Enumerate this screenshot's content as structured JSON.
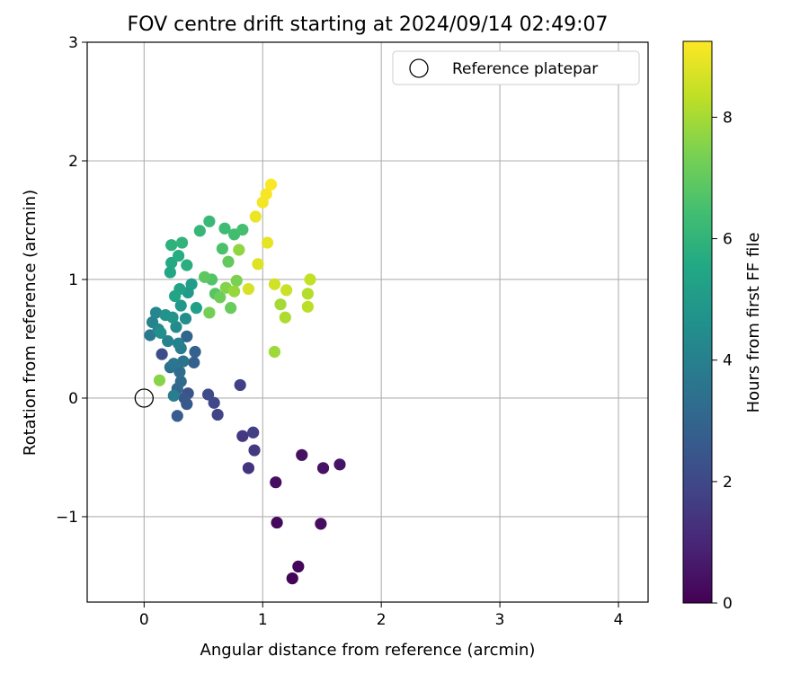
{
  "chart_data": {
    "type": "scatter",
    "title": "FOV centre drift starting at 2024/09/14 02:49:07",
    "xlabel": "Angular distance from reference (arcmin)",
    "ylabel": "Rotation from reference (arcmin)",
    "xlim": [
      -0.48,
      4.25
    ],
    "ylim": [
      -1.72,
      3.0
    ],
    "xticks": [
      0,
      1,
      2,
      3,
      4
    ],
    "xtick_labels": [
      "0",
      "1",
      "2",
      "3",
      "4"
    ],
    "yticks": [
      -1,
      0,
      1,
      2,
      3
    ],
    "ytick_labels": [
      "−1",
      "0",
      "1",
      "2",
      "3"
    ],
    "grid": true,
    "legend": {
      "position": "top-right",
      "label": "Reference platepar"
    },
    "reference": {
      "x": 0,
      "y": 0
    },
    "colorbar": {
      "label": "Hours from first FF file",
      "colormap": "viridis",
      "range": [
        0,
        9.25
      ],
      "ticks": [
        0,
        2,
        4,
        6,
        8
      ],
      "tick_labels": [
        "0",
        "2",
        "4",
        "6",
        "8"
      ]
    },
    "points": [
      [
        1.25,
        -1.52,
        0.1
      ],
      [
        1.3,
        -1.42,
        0.15
      ],
      [
        1.12,
        -1.05,
        0.2
      ],
      [
        1.49,
        -1.06,
        0.3
      ],
      [
        1.11,
        -0.71,
        0.35
      ],
      [
        1.33,
        -0.48,
        0.4
      ],
      [
        1.51,
        -0.59,
        0.45
      ],
      [
        1.65,
        -0.56,
        0.5
      ],
      [
        0.88,
        -0.59,
        1.4
      ],
      [
        0.83,
        -0.32,
        1.5
      ],
      [
        0.93,
        -0.44,
        1.6
      ],
      [
        0.92,
        -0.29,
        1.7
      ],
      [
        0.81,
        0.11,
        1.8
      ],
      [
        0.62,
        -0.14,
        1.9
      ],
      [
        0.59,
        -0.04,
        2.0
      ],
      [
        0.54,
        0.03,
        2.1
      ],
      [
        0.15,
        0.37,
        2.2
      ],
      [
        0.37,
        0.04,
        2.4
      ],
      [
        0.34,
        0.0,
        2.5
      ],
      [
        0.36,
        -0.05,
        2.6
      ],
      [
        0.28,
        -0.15,
        2.7
      ],
      [
        0.42,
        0.3,
        2.8
      ],
      [
        0.43,
        0.39,
        2.9
      ],
      [
        0.36,
        0.52,
        3.0
      ],
      [
        0.28,
        0.08,
        3.1
      ],
      [
        0.31,
        0.14,
        3.2
      ],
      [
        0.3,
        0.22,
        3.3
      ],
      [
        0.22,
        0.26,
        3.4
      ],
      [
        0.33,
        0.31,
        3.5
      ],
      [
        0.25,
        0.29,
        3.6
      ],
      [
        0.05,
        0.53,
        3.7
      ],
      [
        0.31,
        0.42,
        3.8
      ],
      [
        0.25,
        0.02,
        3.9
      ],
      [
        0.29,
        0.46,
        4.0
      ],
      [
        0.2,
        0.48,
        4.1
      ],
      [
        0.07,
        0.64,
        4.15
      ],
      [
        0.1,
        0.72,
        4.2
      ],
      [
        0.12,
        0.58,
        4.3
      ],
      [
        0.27,
        0.6,
        4.4
      ],
      [
        0.35,
        0.67,
        4.5
      ],
      [
        0.14,
        0.55,
        4.6
      ],
      [
        0.18,
        0.7,
        4.7
      ],
      [
        0.24,
        0.68,
        4.8
      ],
      [
        0.31,
        0.78,
        4.9
      ],
      [
        0.37,
        0.89,
        5.0
      ],
      [
        0.4,
        0.96,
        5.1
      ],
      [
        0.44,
        0.76,
        5.2
      ],
      [
        0.3,
        0.92,
        5.3
      ],
      [
        0.26,
        0.86,
        5.4
      ],
      [
        0.22,
        1.06,
        5.5
      ],
      [
        0.23,
        1.14,
        5.6
      ],
      [
        0.29,
        1.2,
        5.7
      ],
      [
        0.36,
        1.12,
        5.8
      ],
      [
        0.23,
        1.29,
        5.9
      ],
      [
        0.32,
        1.31,
        6.0
      ],
      [
        0.47,
        1.41,
        6.1
      ],
      [
        0.55,
        1.49,
        6.2
      ],
      [
        0.68,
        1.43,
        6.3
      ],
      [
        0.76,
        1.38,
        6.4
      ],
      [
        0.83,
        1.42,
        6.5
      ],
      [
        0.66,
        1.26,
        6.6
      ],
      [
        0.57,
        1.0,
        6.7
      ],
      [
        0.6,
        0.88,
        6.8
      ],
      [
        0.51,
        1.02,
        6.9
      ],
      [
        0.71,
        1.15,
        7.0
      ],
      [
        0.73,
        0.76,
        7.1
      ],
      [
        0.64,
        0.85,
        7.2
      ],
      [
        0.55,
        0.72,
        7.3
      ],
      [
        0.78,
        0.99,
        7.4
      ],
      [
        0.69,
        0.93,
        7.5
      ],
      [
        0.13,
        0.15,
        7.6
      ],
      [
        0.8,
        1.25,
        7.7
      ],
      [
        0.76,
        0.9,
        7.8
      ],
      [
        1.1,
        0.39,
        7.9
      ],
      [
        1.15,
        0.79,
        8.0
      ],
      [
        1.19,
        0.68,
        8.1
      ],
      [
        1.38,
        0.88,
        8.2
      ],
      [
        1.38,
        0.77,
        8.3
      ],
      [
        1.4,
        1.0,
        8.4
      ],
      [
        1.2,
        0.91,
        8.5
      ],
      [
        1.1,
        0.96,
        8.6
      ],
      [
        0.88,
        0.92,
        8.7
      ],
      [
        0.96,
        1.13,
        8.8
      ],
      [
        1.04,
        1.31,
        8.9
      ],
      [
        0.94,
        1.53,
        9.0
      ],
      [
        1.0,
        1.65,
        9.1
      ],
      [
        1.03,
        1.72,
        9.15
      ],
      [
        1.07,
        1.8,
        9.2
      ]
    ]
  }
}
